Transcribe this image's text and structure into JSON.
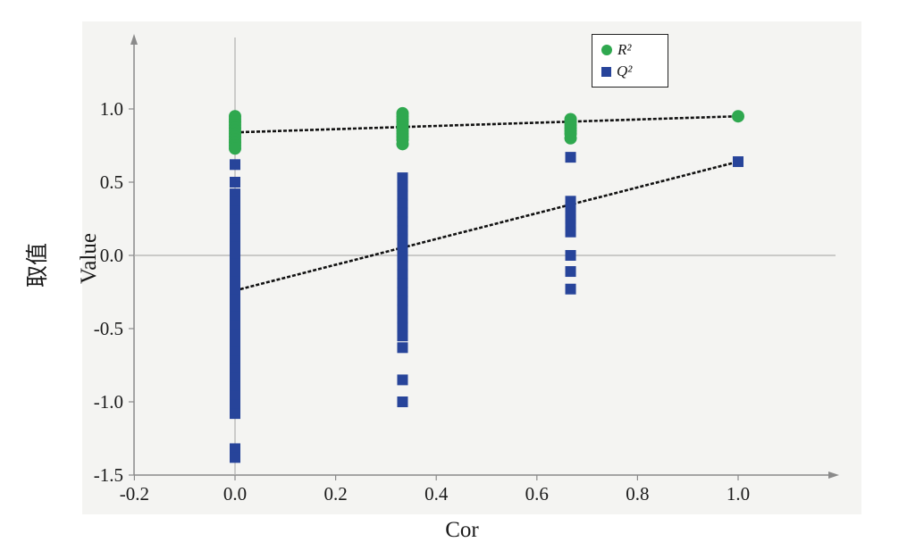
{
  "chart_data": {
    "type": "scatter",
    "xlabel": "Cor",
    "ylabel_cn": "取值",
    "ylabel_en": "Value",
    "xlim": [
      -0.2,
      1.15
    ],
    "ylim": [
      -1.5,
      1.45
    ],
    "xticks": [
      "-0.2",
      "0.0",
      "0.2",
      "0.4",
      "0.6",
      "0.8",
      "1.0"
    ],
    "yticks": [
      "1.0",
      "0.5",
      "0.0",
      "-0.5",
      "-1.0",
      "-1.5"
    ],
    "xtick_values": [
      -0.2,
      0.0,
      0.2,
      0.4,
      0.6,
      0.8,
      1.0
    ],
    "ytick_values": [
      1.0,
      0.5,
      0.0,
      -0.5,
      -1.0,
      -1.5
    ],
    "legend_position": "top-right",
    "series": [
      {
        "name": "R²",
        "marker": "circle",
        "color": "#2fa84f",
        "points": [
          [
            0.0,
            0.95
          ],
          [
            0.0,
            0.93
          ],
          [
            0.0,
            0.91
          ],
          [
            0.0,
            0.89
          ],
          [
            0.0,
            0.87
          ],
          [
            0.0,
            0.85
          ],
          [
            0.0,
            0.83
          ],
          [
            0.0,
            0.81
          ],
          [
            0.0,
            0.79
          ],
          [
            0.0,
            0.77
          ],
          [
            0.0,
            0.75
          ],
          [
            0.0,
            0.73
          ],
          [
            0.333,
            0.97
          ],
          [
            0.333,
            0.95
          ],
          [
            0.333,
            0.93
          ],
          [
            0.333,
            0.91
          ],
          [
            0.333,
            0.89
          ],
          [
            0.333,
            0.87
          ],
          [
            0.333,
            0.85
          ],
          [
            0.333,
            0.83
          ],
          [
            0.333,
            0.81
          ],
          [
            0.333,
            0.79
          ],
          [
            0.333,
            0.76
          ],
          [
            0.667,
            0.93
          ],
          [
            0.667,
            0.91
          ],
          [
            0.667,
            0.89
          ],
          [
            0.667,
            0.87
          ],
          [
            0.667,
            0.85
          ],
          [
            0.667,
            0.83
          ],
          [
            0.667,
            0.8
          ],
          [
            1.0,
            0.95
          ]
        ],
        "regression": {
          "intercept": 0.84,
          "slope": 0.11
        }
      },
      {
        "name": "Q²",
        "marker": "square",
        "color": "#27449a",
        "points": [
          [
            0.0,
            0.62
          ],
          [
            0.0,
            0.5
          ],
          [
            0.0,
            0.42
          ],
          [
            0.0,
            0.36
          ],
          [
            0.0,
            0.3
          ],
          [
            0.0,
            0.24
          ],
          [
            0.0,
            0.18
          ],
          [
            0.0,
            0.12
          ],
          [
            0.0,
            0.06
          ],
          [
            0.0,
            0.0
          ],
          [
            0.0,
            -0.06
          ],
          [
            0.0,
            -0.12
          ],
          [
            0.0,
            -0.18
          ],
          [
            0.0,
            -0.24
          ],
          [
            0.0,
            -0.3
          ],
          [
            0.0,
            -0.36
          ],
          [
            0.0,
            -0.42
          ],
          [
            0.0,
            -0.48
          ],
          [
            0.0,
            -0.54
          ],
          [
            0.0,
            -0.6
          ],
          [
            0.0,
            -0.66
          ],
          [
            0.0,
            -0.72
          ],
          [
            0.0,
            -0.78
          ],
          [
            0.0,
            -0.84
          ],
          [
            0.0,
            -0.9
          ],
          [
            0.0,
            -0.96
          ],
          [
            0.0,
            -1.02
          ],
          [
            0.0,
            -1.08
          ],
          [
            0.0,
            -1.32
          ],
          [
            0.0,
            -1.38
          ],
          [
            0.333,
            0.53
          ],
          [
            0.333,
            0.47
          ],
          [
            0.333,
            0.41
          ],
          [
            0.333,
            0.35
          ],
          [
            0.333,
            0.29
          ],
          [
            0.333,
            0.23
          ],
          [
            0.333,
            0.17
          ],
          [
            0.333,
            0.11
          ],
          [
            0.333,
            0.05
          ],
          [
            0.333,
            -0.01
          ],
          [
            0.333,
            -0.07
          ],
          [
            0.333,
            -0.13
          ],
          [
            0.333,
            -0.19
          ],
          [
            0.333,
            -0.25
          ],
          [
            0.333,
            -0.31
          ],
          [
            0.333,
            -0.37
          ],
          [
            0.333,
            -0.43
          ],
          [
            0.333,
            -0.49
          ],
          [
            0.333,
            -0.55
          ],
          [
            0.333,
            -0.63
          ],
          [
            0.333,
            -0.85
          ],
          [
            0.333,
            -1.0
          ],
          [
            0.667,
            0.67
          ],
          [
            0.667,
            0.37
          ],
          [
            0.667,
            0.33
          ],
          [
            0.667,
            0.29
          ],
          [
            0.667,
            0.25
          ],
          [
            0.667,
            0.21
          ],
          [
            0.667,
            0.16
          ],
          [
            0.667,
            0.0
          ],
          [
            0.667,
            -0.11
          ],
          [
            0.667,
            -0.23
          ],
          [
            1.0,
            0.64
          ]
        ],
        "regression": {
          "intercept": -0.24,
          "slope": 0.88
        }
      }
    ],
    "legend": [
      "R²",
      "Q²"
    ]
  }
}
